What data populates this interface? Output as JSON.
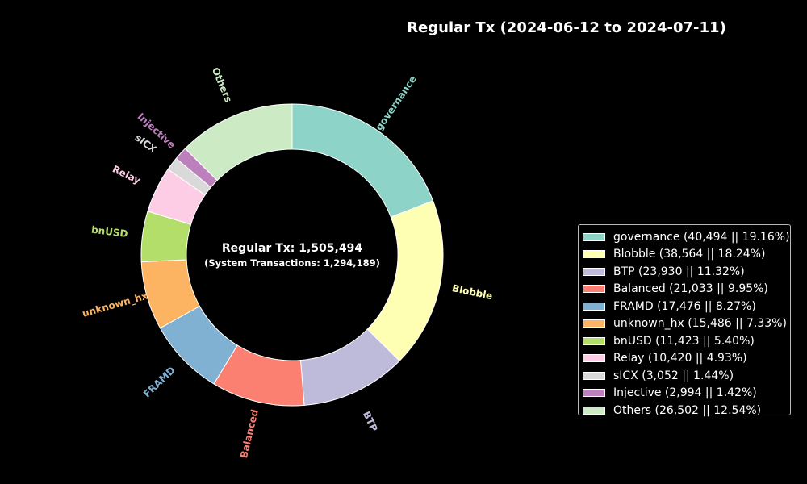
{
  "chart_data": {
    "type": "pie",
    "style": "donut",
    "title": "Regular Tx (2024-06-12 to 2024-07-11)",
    "center_text": "Regular Tx: 1,505,494",
    "center_subtext": "(System Transactions: 1,294,189)",
    "legend_placement": "right",
    "slices": [
      {
        "label": "governance",
        "value": 40494,
        "percent": 19.16,
        "color": "#8dd3c7",
        "legend": "governance (40,494 || 19.16%)"
      },
      {
        "label": "Blobble",
        "value": 38564,
        "percent": 18.24,
        "color": "#ffffb3",
        "legend": "Blobble (38,564 || 18.24%)"
      },
      {
        "label": "BTP",
        "value": 23930,
        "percent": 11.32,
        "color": "#bebada",
        "legend": "BTP (23,930 || 11.32%)"
      },
      {
        "label": "Balanced",
        "value": 21033,
        "percent": 9.95,
        "color": "#fb8072",
        "legend": "Balanced (21,033 || 9.95%)"
      },
      {
        "label": "FRAMD",
        "value": 17476,
        "percent": 8.27,
        "color": "#80b1d3",
        "legend": "FRAMD (17,476 || 8.27%)"
      },
      {
        "label": "unknown_hx",
        "value": 15486,
        "percent": 7.33,
        "color": "#fdb462",
        "legend": "unknown_hx (15,486 || 7.33%)"
      },
      {
        "label": "bnUSD",
        "value": 11423,
        "percent": 5.4,
        "color": "#b3de69",
        "legend": "bnUSD (11,423 || 5.40%)"
      },
      {
        "label": "Relay",
        "value": 10420,
        "percent": 4.93,
        "color": "#fccde5",
        "legend": "Relay (10,420 || 4.93%)"
      },
      {
        "label": "sICX",
        "value": 3052,
        "percent": 1.44,
        "color": "#d9d9d9",
        "legend": "sICX (3,052 || 1.44%)"
      },
      {
        "label": "Injective",
        "value": 2994,
        "percent": 1.42,
        "color": "#bc80bd",
        "legend": "Injective (2,994 || 1.42%)"
      },
      {
        "label": "Others",
        "value": 26502,
        "percent": 12.54,
        "color": "#ccebc5",
        "legend": "Others (26,502 || 12.54%)"
      }
    ]
  }
}
